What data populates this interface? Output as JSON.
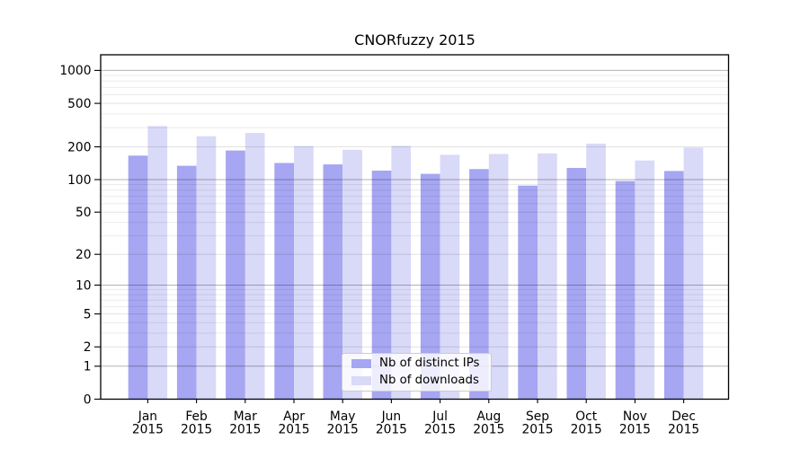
{
  "chart_data": {
    "type": "bar",
    "title": "CNORfuzzy 2015",
    "categories": [
      "Jan 2015",
      "Feb 2015",
      "Mar 2015",
      "Apr 2015",
      "May 2015",
      "Jun 2015",
      "Jul 2015",
      "Aug 2015",
      "Sep 2015",
      "Oct 2015",
      "Nov 2015",
      "Dec 2015"
    ],
    "series": [
      {
        "name": "Nb of distinct IPs",
        "color": "#a6a6f2",
        "values": [
          166,
          134,
          185,
          142,
          138,
          121,
          113,
          125,
          88,
          128,
          97,
          120
        ]
      },
      {
        "name": "Nb of downloads",
        "color": "#d9d9f8",
        "values": [
          310,
          250,
          268,
          203,
          188,
          204,
          169,
          172,
          174,
          214,
          150,
          197
        ]
      }
    ],
    "y_axis": {
      "scale": "log10(1+v)",
      "tick_values": [
        0,
        1,
        2,
        5,
        10,
        20,
        50,
        100,
        200,
        500,
        1000
      ],
      "tick_labels": [
        "0",
        "1",
        "2",
        "5",
        "10",
        "20",
        "50",
        "100",
        "200",
        "500",
        "1000"
      ],
      "ylim": [
        0,
        1380
      ],
      "grid": "horizontal major and minor"
    },
    "x_axis": {
      "tick_label_line2": "2015"
    },
    "legend": {
      "position": "lower center",
      "entries": [
        "Nb of distinct IPs",
        "Nb of downloads"
      ]
    }
  },
  "colors": {
    "background": "#ffffff",
    "bar_distinct_ips": "#a6a6f2",
    "bar_downloads": "#d9d9f8",
    "major_gridline": "#b3b3b3",
    "minor_gridline": "#ebebeb",
    "axis": "#000000",
    "text": "#000000",
    "legend_border": "#cccccc"
  }
}
